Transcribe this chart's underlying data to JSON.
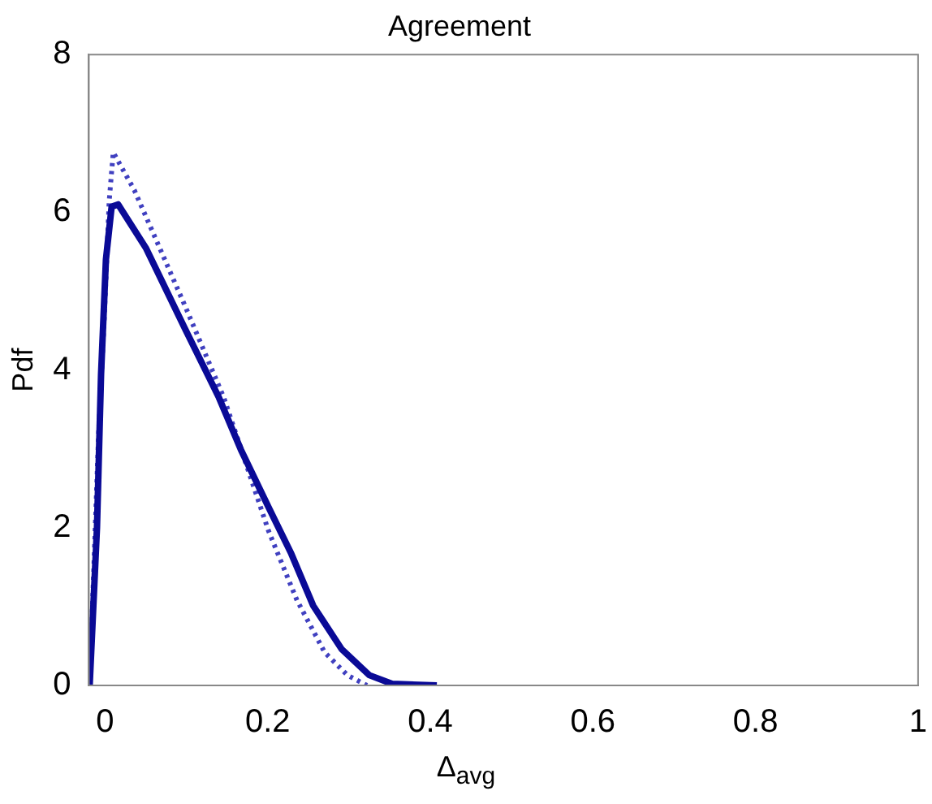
{
  "chart_data": {
    "type": "line",
    "title": "Agreement",
    "xlabel": "Δ$_{avg}$",
    "ylabel": "Pdf",
    "xlim": [
      -0.02,
      1
    ],
    "xticks": [
      0,
      0.2,
      0.4,
      0.6,
      0.8,
      1
    ],
    "ylim": [
      0,
      8
    ],
    "yticks": [
      0,
      2,
      4,
      6,
      8
    ],
    "grid": false,
    "legend": false,
    "marker": "none",
    "series": [
      {
        "color": "#0a0a96",
        "line_style": "solid",
        "x": [
          -0.019,
          -0.01,
          -0.005,
          0.001,
          0.008,
          0.016,
          0.05,
          0.098,
          0.14,
          0.167,
          0.201,
          0.229,
          0.256,
          0.291,
          0.325,
          0.353,
          0.408
        ],
        "values": [
          0,
          2,
          3.94,
          5.4,
          6.07,
          6.1,
          5.55,
          4.53,
          3.65,
          2.99,
          2.26,
          1.67,
          1.01,
          0.46,
          0.13,
          0.02,
          0
        ]
      },
      {
        "color": "#4040c0",
        "line_style": "dotted",
        "x": [
          -0.019,
          -0.008,
          -0.001,
          0.005,
          0.01,
          0.036,
          0.098,
          0.146,
          0.201,
          0.236,
          0.27,
          0.298,
          0.322
        ],
        "values": [
          0,
          3.2,
          4.67,
          6.14,
          6.76,
          6.28,
          4.82,
          3.65,
          1.96,
          1.08,
          0.42,
          0.13,
          0
        ]
      }
    ]
  }
}
